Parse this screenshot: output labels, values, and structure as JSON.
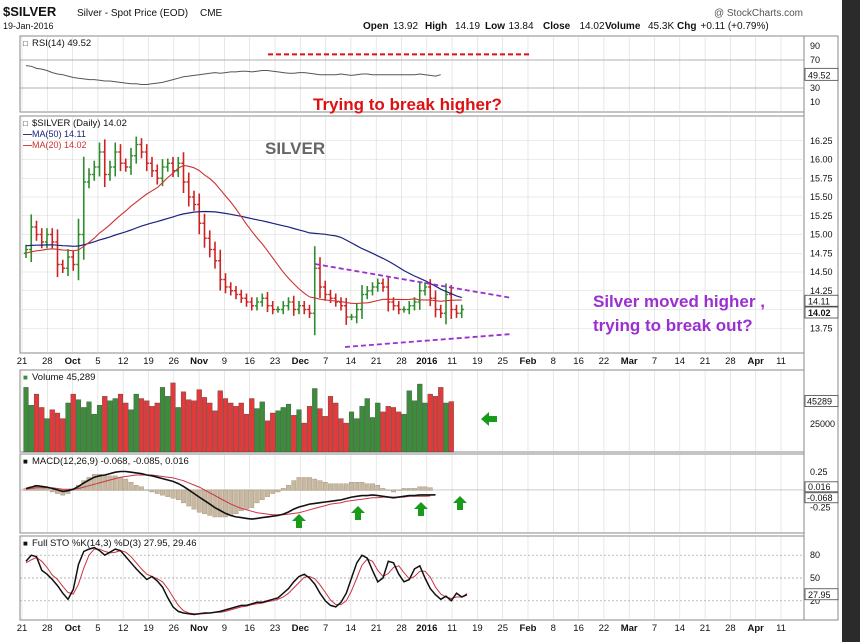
{
  "header": {
    "symbol": "$SILVER",
    "name": "Silver - Spot Price (EOD)",
    "exchange": "CME",
    "date": "19-Jan-2016",
    "watermark": "@ StockCharts.com",
    "ohlc": [
      {
        "label": "Open",
        "value": "13.92"
      },
      {
        "label": "High",
        "value": "14.19"
      },
      {
        "label": "Low",
        "value": "13.84"
      },
      {
        "label": "Close",
        "value": "14.02"
      },
      {
        "label": "Volume",
        "value": "45.3K"
      },
      {
        "label": "Chg",
        "value": "+0.11 (+0.79%)"
      }
    ]
  },
  "colors": {
    "up": "#2e8b2e",
    "down": "#cc2222",
    "ma50": "#1a237e",
    "ma20": "#cc3333",
    "annotation_red": "#dd1111",
    "annotation_purple": "#9b30d0",
    "arrow_green": "#1a9a1a",
    "frame": "#7a7a7a",
    "grid": "#d8d8d8"
  },
  "chart_data": [
    {
      "type": "line",
      "panel": "rsi",
      "label": "RSI(14) 49.52",
      "ylim": [
        0,
        100
      ],
      "ticks": [
        "90",
        "70",
        "50",
        "30",
        "10"
      ],
      "last_value": "49.52",
      "reference_levels": [
        70,
        30
      ],
      "values": [
        62,
        61,
        58,
        57,
        55,
        52,
        50,
        49,
        47,
        45,
        44,
        43,
        42,
        42,
        41,
        40,
        40,
        39,
        38,
        37,
        36,
        36,
        35,
        35,
        36,
        37,
        38,
        40,
        42,
        44,
        46,
        47,
        48,
        49,
        50,
        51,
        52,
        51,
        52,
        53,
        53,
        54,
        54,
        53,
        54,
        55,
        55,
        54,
        53,
        52,
        51,
        51,
        52,
        52,
        51,
        50,
        49,
        49,
        49,
        49,
        50,
        49,
        48,
        49,
        50,
        50,
        49,
        49,
        49,
        49,
        49,
        49,
        49,
        49,
        49,
        50,
        49,
        48,
        47,
        49
      ]
    },
    {
      "type": "candlestick",
      "panel": "price",
      "label": "$SILVER (Daily) 14.02",
      "series": [
        {
          "name": "MA(50) 14.11",
          "kind": "ma50"
        },
        {
          "name": "MA(20) 14.02",
          "kind": "ma20"
        }
      ],
      "ylim": [
        13.5,
        16.5
      ],
      "ticks": [
        "16.25",
        "16.00",
        "15.75",
        "15.50",
        "15.25",
        "15.00",
        "14.75",
        "14.50",
        "14.25",
        "14.00",
        "13.75"
      ],
      "last_values": [
        "14.11",
        "14.02"
      ],
      "close": [
        14.8,
        15.1,
        15.0,
        14.9,
        15.0,
        14.9,
        14.6,
        14.55,
        14.7,
        14.6,
        15.0,
        15.7,
        15.8,
        15.9,
        16.1,
        15.8,
        15.9,
        16.1,
        15.95,
        15.9,
        16.05,
        16.2,
        16.1,
        15.95,
        15.85,
        15.75,
        15.9,
        15.95,
        15.85,
        15.95,
        15.7,
        15.5,
        15.4,
        15.15,
        14.95,
        14.8,
        14.65,
        14.4,
        14.3,
        14.25,
        14.2,
        14.15,
        14.1,
        14.05,
        14.1,
        14.15,
        14.05,
        14.0,
        14.0,
        14.05,
        14.1,
        14.0,
        14.05,
        14.0,
        13.95,
        14.55,
        14.3,
        14.2,
        14.15,
        14.1,
        14.05,
        13.9,
        13.9,
        14.0,
        14.2,
        14.25,
        14.3,
        14.35,
        14.3,
        14.1,
        14.05,
        14.0,
        14.0,
        14.05,
        14.1,
        14.25,
        14.3,
        14.15,
        14.0,
        13.95,
        14.2,
        14.0,
        13.95,
        14.0
      ]
    },
    {
      "type": "bar",
      "panel": "volume",
      "label": "Volume 45,289",
      "ticks": [
        "25000"
      ],
      "last_value": "45289",
      "values": [
        58000,
        42000,
        52000,
        40000,
        30000,
        38000,
        35000,
        30000,
        44000,
        52000,
        47000,
        40000,
        45000,
        34000,
        42000,
        50000,
        46000,
        48000,
        52000,
        44000,
        38000,
        52000,
        48000,
        46000,
        41000,
        44000,
        58000,
        50000,
        62000,
        40000,
        54000,
        47000,
        46000,
        56000,
        49000,
        44000,
        37000,
        55000,
        48000,
        44000,
        41000,
        44000,
        34000,
        48000,
        39000,
        45000,
        28000,
        35000,
        37000,
        40000,
        43000,
        33000,
        38000,
        26000,
        41000,
        57000,
        39000,
        32000,
        50000,
        44000,
        30000,
        26000,
        36000,
        30000,
        41000,
        48000,
        31000,
        44000,
        36000,
        41000,
        40000,
        36000,
        34000,
        55000,
        46000,
        61000,
        44000,
        52000,
        50000,
        58000,
        44000,
        45289
      ]
    },
    {
      "type": "line",
      "panel": "macd",
      "label": "MACD(12,26,9) -0.068, -0.085, 0.016",
      "ticks": [
        "0.25",
        "-0.25"
      ],
      "last_values": [
        "0.016",
        "-0.068"
      ],
      "ylim": [
        -0.55,
        0.45
      ],
      "macd": [
        0.02,
        0.04,
        0.06,
        0.05,
        0.04,
        0.02,
        0.0,
        -0.02,
        -0.01,
        0.01,
        0.05,
        0.1,
        0.14,
        0.18,
        0.2,
        0.21,
        0.23,
        0.25,
        0.26,
        0.26,
        0.25,
        0.24,
        0.23,
        0.21,
        0.2,
        0.18,
        0.16,
        0.14,
        0.12,
        0.09,
        0.05,
        0.0,
        -0.05,
        -0.1,
        -0.15,
        -0.2,
        -0.25,
        -0.29,
        -0.33,
        -0.36,
        -0.38,
        -0.39,
        -0.4,
        -0.41,
        -0.4,
        -0.39,
        -0.38,
        -0.37,
        -0.36,
        -0.34,
        -0.31,
        -0.27,
        -0.24,
        -0.22,
        -0.2,
        -0.19,
        -0.18,
        -0.17,
        -0.16,
        -0.15,
        -0.14,
        -0.12,
        -0.1,
        -0.09,
        -0.08,
        -0.08,
        -0.07,
        -0.08,
        -0.09,
        -0.1,
        -0.11,
        -0.1,
        -0.09,
        -0.08,
        -0.08,
        -0.07,
        -0.07,
        -0.07,
        -0.068
      ],
      "signal": [
        0.01,
        0.02,
        0.03,
        0.03,
        0.03,
        0.03,
        0.02,
        0.01,
        0.01,
        0.01,
        0.02,
        0.04,
        0.06,
        0.08,
        0.1,
        0.12,
        0.14,
        0.16,
        0.18,
        0.19,
        0.2,
        0.21,
        0.21,
        0.21,
        0.21,
        0.2,
        0.19,
        0.18,
        0.17,
        0.15,
        0.13,
        0.1,
        0.07,
        0.04,
        0.0,
        -0.04,
        -0.08,
        -0.12,
        -0.16,
        -0.2,
        -0.23,
        -0.26,
        -0.28,
        -0.3,
        -0.32,
        -0.33,
        -0.34,
        -0.35,
        -0.35,
        -0.35,
        -0.34,
        -0.33,
        -0.32,
        -0.3,
        -0.28,
        -0.26,
        -0.24,
        -0.22,
        -0.2,
        -0.19,
        -0.18,
        -0.16,
        -0.15,
        -0.14,
        -0.13,
        -0.12,
        -0.11,
        -0.11,
        -0.1,
        -0.1,
        -0.1,
        -0.1,
        -0.1,
        -0.09,
        -0.09,
        -0.09,
        -0.09,
        -0.085
      ]
    },
    {
      "type": "line",
      "panel": "stochastic",
      "label": "Full STO %K(14,3) %D(3) 27.95, 29.46",
      "ylim": [
        0,
        100
      ],
      "ticks": [
        "80",
        "50",
        "20"
      ],
      "last_value": "27.95",
      "k": [
        72,
        80,
        78,
        60,
        55,
        48,
        40,
        30,
        22,
        35,
        68,
        85,
        88,
        90,
        86,
        80,
        84,
        88,
        86,
        78,
        70,
        62,
        55,
        48,
        52,
        46,
        38,
        24,
        12,
        6,
        4,
        3,
        2,
        3,
        4,
        4,
        5,
        6,
        8,
        10,
        12,
        14,
        14,
        16,
        18,
        18,
        20,
        22,
        24,
        30,
        36,
        45,
        52,
        55,
        50,
        42,
        30,
        20,
        14,
        12,
        18,
        30,
        50,
        70,
        80,
        76,
        60,
        45,
        50,
        72,
        70,
        55,
        45,
        48,
        62,
        66,
        50,
        36,
        28,
        22,
        26,
        20,
        30,
        25,
        28
      ],
      "d": [
        70,
        74,
        77,
        72,
        64,
        54,
        48,
        39,
        31,
        29,
        42,
        63,
        80,
        88,
        88,
        85,
        83,
        84,
        86,
        84,
        78,
        70,
        62,
        55,
        52,
        49,
        45,
        36,
        25,
        14,
        7,
        4,
        3,
        3,
        3,
        4,
        5,
        5,
        6,
        8,
        10,
        12,
        13,
        15,
        16,
        17,
        19,
        20,
        22,
        25,
        30,
        37,
        44,
        51,
        52,
        49,
        41,
        31,
        21,
        15,
        15,
        20,
        33,
        50,
        67,
        75,
        72,
        60,
        52,
        56,
        64,
        66,
        57,
        49,
        52,
        59,
        59,
        51,
        38,
        29,
        25,
        23,
        25,
        25,
        29.46
      ]
    }
  ],
  "x_axis_labels": [
    "21",
    "28",
    "Oct",
    "5",
    "12",
    "19",
    "26",
    "Nov",
    "9",
    "16",
    "23",
    "Dec",
    "7",
    "14",
    "21",
    "28",
    "2016",
    "11",
    "19",
    "25",
    "Feb",
    "8",
    "16",
    "22",
    "Mar",
    "7",
    "14",
    "21",
    "28",
    "Apr",
    "11"
  ],
  "annotations": {
    "silver_title": "SILVER",
    "rsi_note": "Trying to break higher?",
    "price_note_1": "Silver moved higher ,",
    "price_note_2": "trying to break out?"
  }
}
